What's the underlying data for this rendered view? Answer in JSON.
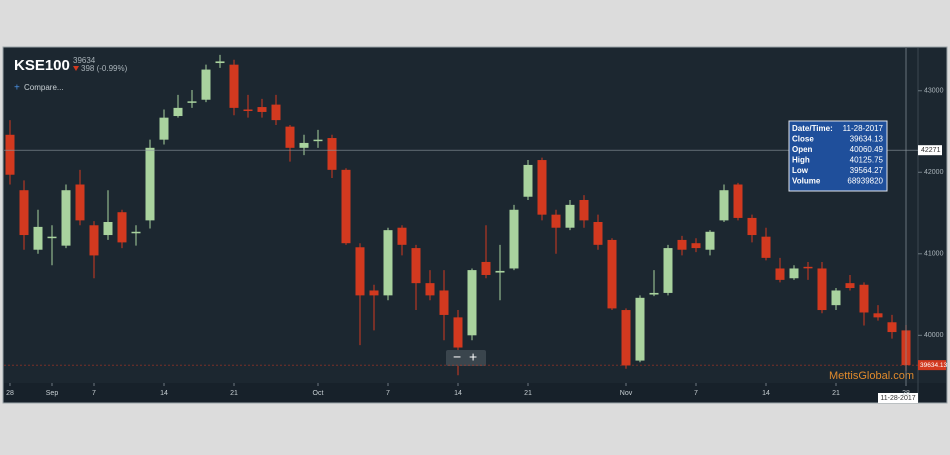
{
  "chart_data": {
    "type": "candlestick",
    "title": "KSE100",
    "last": 39634,
    "change": "398 (-0.99%)",
    "compare": "Compare...",
    "categories": [
      "28",
      null,
      null,
      "Sep",
      null,
      null,
      "7",
      null,
      null,
      null,
      null,
      "14",
      null,
      null,
      null,
      null,
      "21",
      null,
      null,
      null,
      null,
      null,
      "Oct",
      null,
      null,
      null,
      null,
      "7",
      null,
      null,
      null,
      null,
      "14",
      null,
      null,
      null,
      null,
      "21",
      null,
      null,
      null,
      null,
      null,
      null,
      "Nov",
      null,
      null,
      null,
      null,
      "7",
      null,
      null,
      null,
      null,
      "14",
      null,
      null,
      null,
      null,
      "21",
      null,
      null,
      null,
      null,
      "28"
    ],
    "open": [
      42460,
      41780,
      41050,
      41200,
      41100,
      41850,
      41350,
      41230,
      41510,
      41260,
      41410,
      42400,
      42690,
      42860,
      42890,
      43340,
      43320,
      42770,
      42800,
      42830,
      42560,
      42300,
      42390,
      42420,
      42030,
      41080,
      40550,
      40490,
      41320,
      41070,
      40640,
      40550,
      40220,
      40000,
      40900,
      40770,
      40820,
      41700,
      42150,
      41480,
      41320,
      41660,
      41390,
      41170,
      40310,
      39690,
      40500,
      40520,
      41170,
      41130,
      41050,
      41410,
      41850,
      41440,
      41210,
      40820,
      40700,
      40840,
      40820,
      40370,
      40640,
      40620,
      40270,
      40160,
      40060.49
    ],
    "high": [
      42640,
      41900,
      41540,
      41350,
      41850,
      42030,
      41400,
      41780,
      41540,
      41350,
      42400,
      42770,
      42950,
      43010,
      43320,
      43440,
      43380,
      42950,
      42900,
      42950,
      42580,
      42460,
      42520,
      42460,
      42050,
      41130,
      40620,
      41320,
      41350,
      41110,
      40800,
      40800,
      40310,
      40820,
      41350,
      41110,
      41600,
      42150,
      42180,
      41540,
      41660,
      41720,
      41480,
      41190,
      40330,
      40490,
      40800,
      41110,
      41220,
      41190,
      41290,
      41850,
      41870,
      41480,
      41320,
      40950,
      40860,
      40900,
      40900,
      40580,
      40740,
      40650,
      40370,
      40250,
      40125.75
    ],
    "low": [
      41850,
      41050,
      41000,
      40860,
      41070,
      41350,
      40700,
      41170,
      41070,
      41100,
      41310,
      42340,
      42670,
      42790,
      42860,
      43280,
      42700,
      42670,
      42670,
      42580,
      42130,
      42210,
      42300,
      41930,
      41110,
      39880,
      40060,
      40430,
      40980,
      40310,
      40430,
      39940,
      39510,
      39940,
      40700,
      40430,
      40800,
      41660,
      41410,
      41000,
      41290,
      41320,
      41050,
      40310,
      39590,
      39670,
      40480,
      40490,
      40980,
      41020,
      40980,
      41390,
      41410,
      41140,
      40920,
      40650,
      40680,
      40680,
      40270,
      40310,
      40550,
      40120,
      40180,
      39960,
      39564.27
    ],
    "close": [
      41970,
      41230,
      41330,
      41210,
      41780,
      41410,
      40980,
      41390,
      41140,
      41270,
      42300,
      42670,
      42790,
      42870,
      43260,
      43360,
      42790,
      42760,
      42740,
      42640,
      42300,
      42360,
      42400,
      42030,
      41130,
      40490,
      40490,
      41290,
      41110,
      40640,
      40490,
      40250,
      39850,
      40800,
      40740,
      40790,
      41540,
      42090,
      41480,
      41320,
      41600,
      41410,
      41110,
      40330,
      39630,
      40460,
      40520,
      41070,
      41050,
      41070,
      41270,
      41780,
      41440,
      41230,
      40950,
      40680,
      40820,
      40830,
      40310,
      40550,
      40580,
      40280,
      40220,
      40040,
      39634.13
    ],
    "up_color": "#a9d39e",
    "down_color": "#d2391f",
    "ylim": [
      39415,
      43500
    ],
    "yticks": [
      40000,
      41000,
      42000,
      43000
    ],
    "crosshair": 42271,
    "last_price": 39634.13,
    "date_label": "11-28-2017",
    "watermark": "MettisGlobal.com",
    "tooltip": {
      "rows": [
        {
          "label": "Date/Time:",
          "value": "11-28-2017"
        },
        {
          "label": "Close",
          "value": 39634.13
        },
        {
          "label": "Open",
          "value": 40060.49
        },
        {
          "label": "High",
          "value": 40125.75
        },
        {
          "label": "Low",
          "value": 39564.27
        },
        {
          "label": "Volume",
          "value": 68939820
        }
      ]
    }
  }
}
